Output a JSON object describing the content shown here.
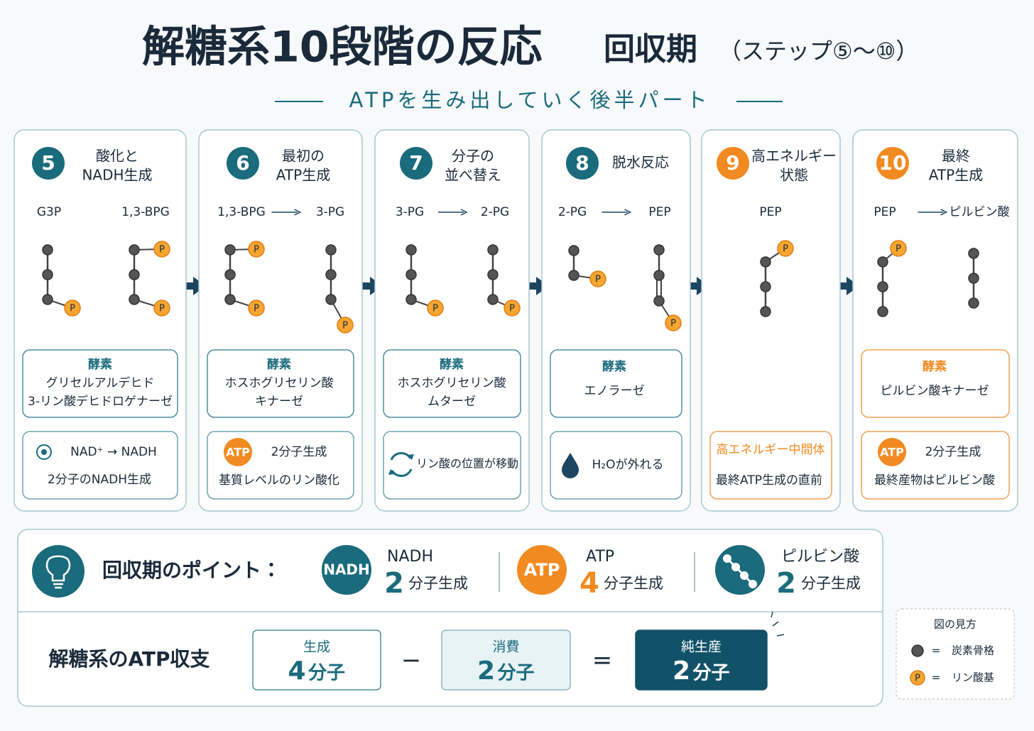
{
  "header": {
    "title": "解糖系10段階の反応",
    "phase": "回収期",
    "range": "（ステップ⑤～⑩）",
    "tagline": "ATPを生み出していく後半パート"
  },
  "phosphate_symbol": "P",
  "steps": [
    {
      "number": "5",
      "title_lines": [
        "酸化と",
        "NADH生成"
      ],
      "from": "G3P",
      "to": "1,3-BPG",
      "enzyme_label": "酵素",
      "enzyme_lines": [
        "グリセルアルデヒド",
        "3-リン酸デヒドロゲナーゼ"
      ],
      "note_lines": [
        "NAD⁺ → NADH",
        "2分子のNADH生成"
      ]
    },
    {
      "number": "6",
      "title_lines": [
        "最初の",
        "ATP生成"
      ],
      "from": "1,3-BPG",
      "to": "3-PG",
      "enzyme_label": "酵素",
      "enzyme_lines": [
        "ホスホグリセリン酸",
        "キナーゼ"
      ],
      "note_badge": "ATP",
      "note_lines": [
        "2分子生成",
        "基質レベルのリン酸化"
      ]
    },
    {
      "number": "7",
      "title_lines": [
        "分子の",
        "並べ替え"
      ],
      "from": "3-PG",
      "to": "2-PG",
      "enzyme_label": "酵素",
      "enzyme_lines": [
        "ホスホグリセリン酸",
        "ムターゼ"
      ],
      "note_lines": [
        "リン酸の位置が移動"
      ]
    },
    {
      "number": "8",
      "title_lines": [
        "脱水反応"
      ],
      "from": "2-PG",
      "to": "PEP",
      "enzyme_label": "酵素",
      "enzyme_lines": [
        "エノラーゼ"
      ],
      "note_lines": [
        "H₂Oが外れる"
      ]
    },
    {
      "number": "9",
      "title_lines": [
        "高エネルギー",
        "状態"
      ],
      "from": "PEP",
      "note_lines": [
        "高エネルギー中間体",
        "最終ATP生成の直前"
      ]
    },
    {
      "number": "10",
      "title_lines": [
        "最終",
        "ATP生成"
      ],
      "from": "PEP",
      "to": "ピルビン酸",
      "enzyme_label": "酵素",
      "enzyme_lines": [
        "ピルビン酸キナーゼ"
      ],
      "note_badge": "ATP",
      "note_lines": [
        "2分子生成",
        "最終産物はピルビン酸"
      ]
    }
  ],
  "points": {
    "label": "回収期のポイント：",
    "items": [
      {
        "badge": "NADH",
        "name": "NADH",
        "count": "2",
        "unit": "分子生成"
      },
      {
        "badge": "ATP",
        "name": "ATP",
        "count": "4",
        "unit": "分子生成"
      },
      {
        "name": "ピルビン酸",
        "count": "2",
        "unit": "分子生成"
      }
    ]
  },
  "balance": {
    "label": "解糖系のATP収支",
    "boxes": [
      {
        "label": "生成",
        "value": "4",
        "unit": "分子"
      },
      {
        "label": "消費",
        "value": "2",
        "unit": "分子"
      },
      {
        "label": "純生産",
        "value": "2",
        "unit": "分子"
      }
    ],
    "operators": [
      "−",
      "="
    ]
  },
  "legend": {
    "title": "図の見方",
    "equals": "=",
    "items": [
      "炭素骨格",
      "リン酸基"
    ]
  }
}
